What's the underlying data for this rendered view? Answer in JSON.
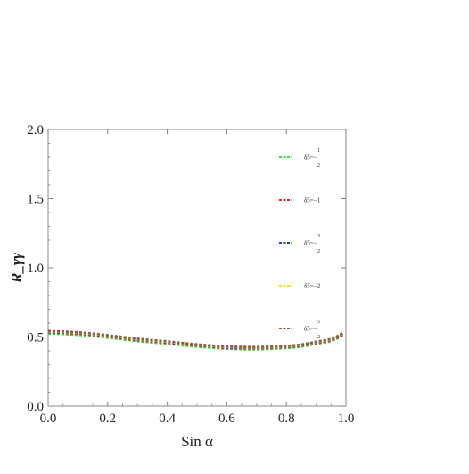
{
  "chart_data": {
    "type": "line",
    "title": "",
    "xlabel": "Sin α",
    "ylabel": "R_γγ",
    "xlim": [
      0.0,
      1.0
    ],
    "ylim": [
      0.0,
      2.0
    ],
    "x_ticks": [
      "0.0",
      "0.2",
      "0.4",
      "0.6",
      "0.8",
      "1.0"
    ],
    "y_ticks": [
      "0.0",
      "0.5",
      "1.0",
      "1.5",
      "2.0"
    ],
    "grid": false,
    "legend_placement": "right",
    "x": [
      0.0,
      0.1,
      0.2,
      0.3,
      0.4,
      0.5,
      0.6,
      0.7,
      0.8,
      0.85,
      0.9,
      0.95,
      0.99
    ],
    "series": [
      {
        "name_lines": [
          "1",
          "δ5=−",
          "2"
        ],
        "color": "#33dd33",
        "values": [
          0.525,
          0.515,
          0.495,
          0.47,
          0.45,
          0.43,
          0.415,
          0.41,
          0.42,
          0.43,
          0.45,
          0.47,
          0.51
        ]
      },
      {
        "name_lines": [
          "",
          "δ5=−1",
          ""
        ],
        "color": "#e02020",
        "values": [
          0.533,
          0.524,
          0.503,
          0.478,
          0.458,
          0.437,
          0.422,
          0.418,
          0.427,
          0.437,
          0.456,
          0.477,
          0.518
        ]
      },
      {
        "name_lines": [
          "3",
          "δ5=−",
          "2"
        ],
        "color": "#1a3cdd",
        "values": [
          0.537,
          0.528,
          0.507,
          0.482,
          0.462,
          0.441,
          0.426,
          0.422,
          0.43,
          0.44,
          0.46,
          0.481,
          0.522
        ]
      },
      {
        "name_lines": [
          "",
          "δ5=−2",
          ""
        ],
        "color": "#f2e01a",
        "values": [
          0.54,
          0.531,
          0.51,
          0.485,
          0.465,
          0.444,
          0.429,
          0.425,
          0.433,
          0.443,
          0.463,
          0.484,
          0.525
        ]
      },
      {
        "name_lines": [
          "5",
          "δ5=−",
          "2"
        ],
        "color": "#8a5a3a",
        "values": [
          0.543,
          0.534,
          0.513,
          0.488,
          0.468,
          0.447,
          0.432,
          0.428,
          0.436,
          0.446,
          0.466,
          0.487,
          0.528
        ]
      }
    ]
  }
}
